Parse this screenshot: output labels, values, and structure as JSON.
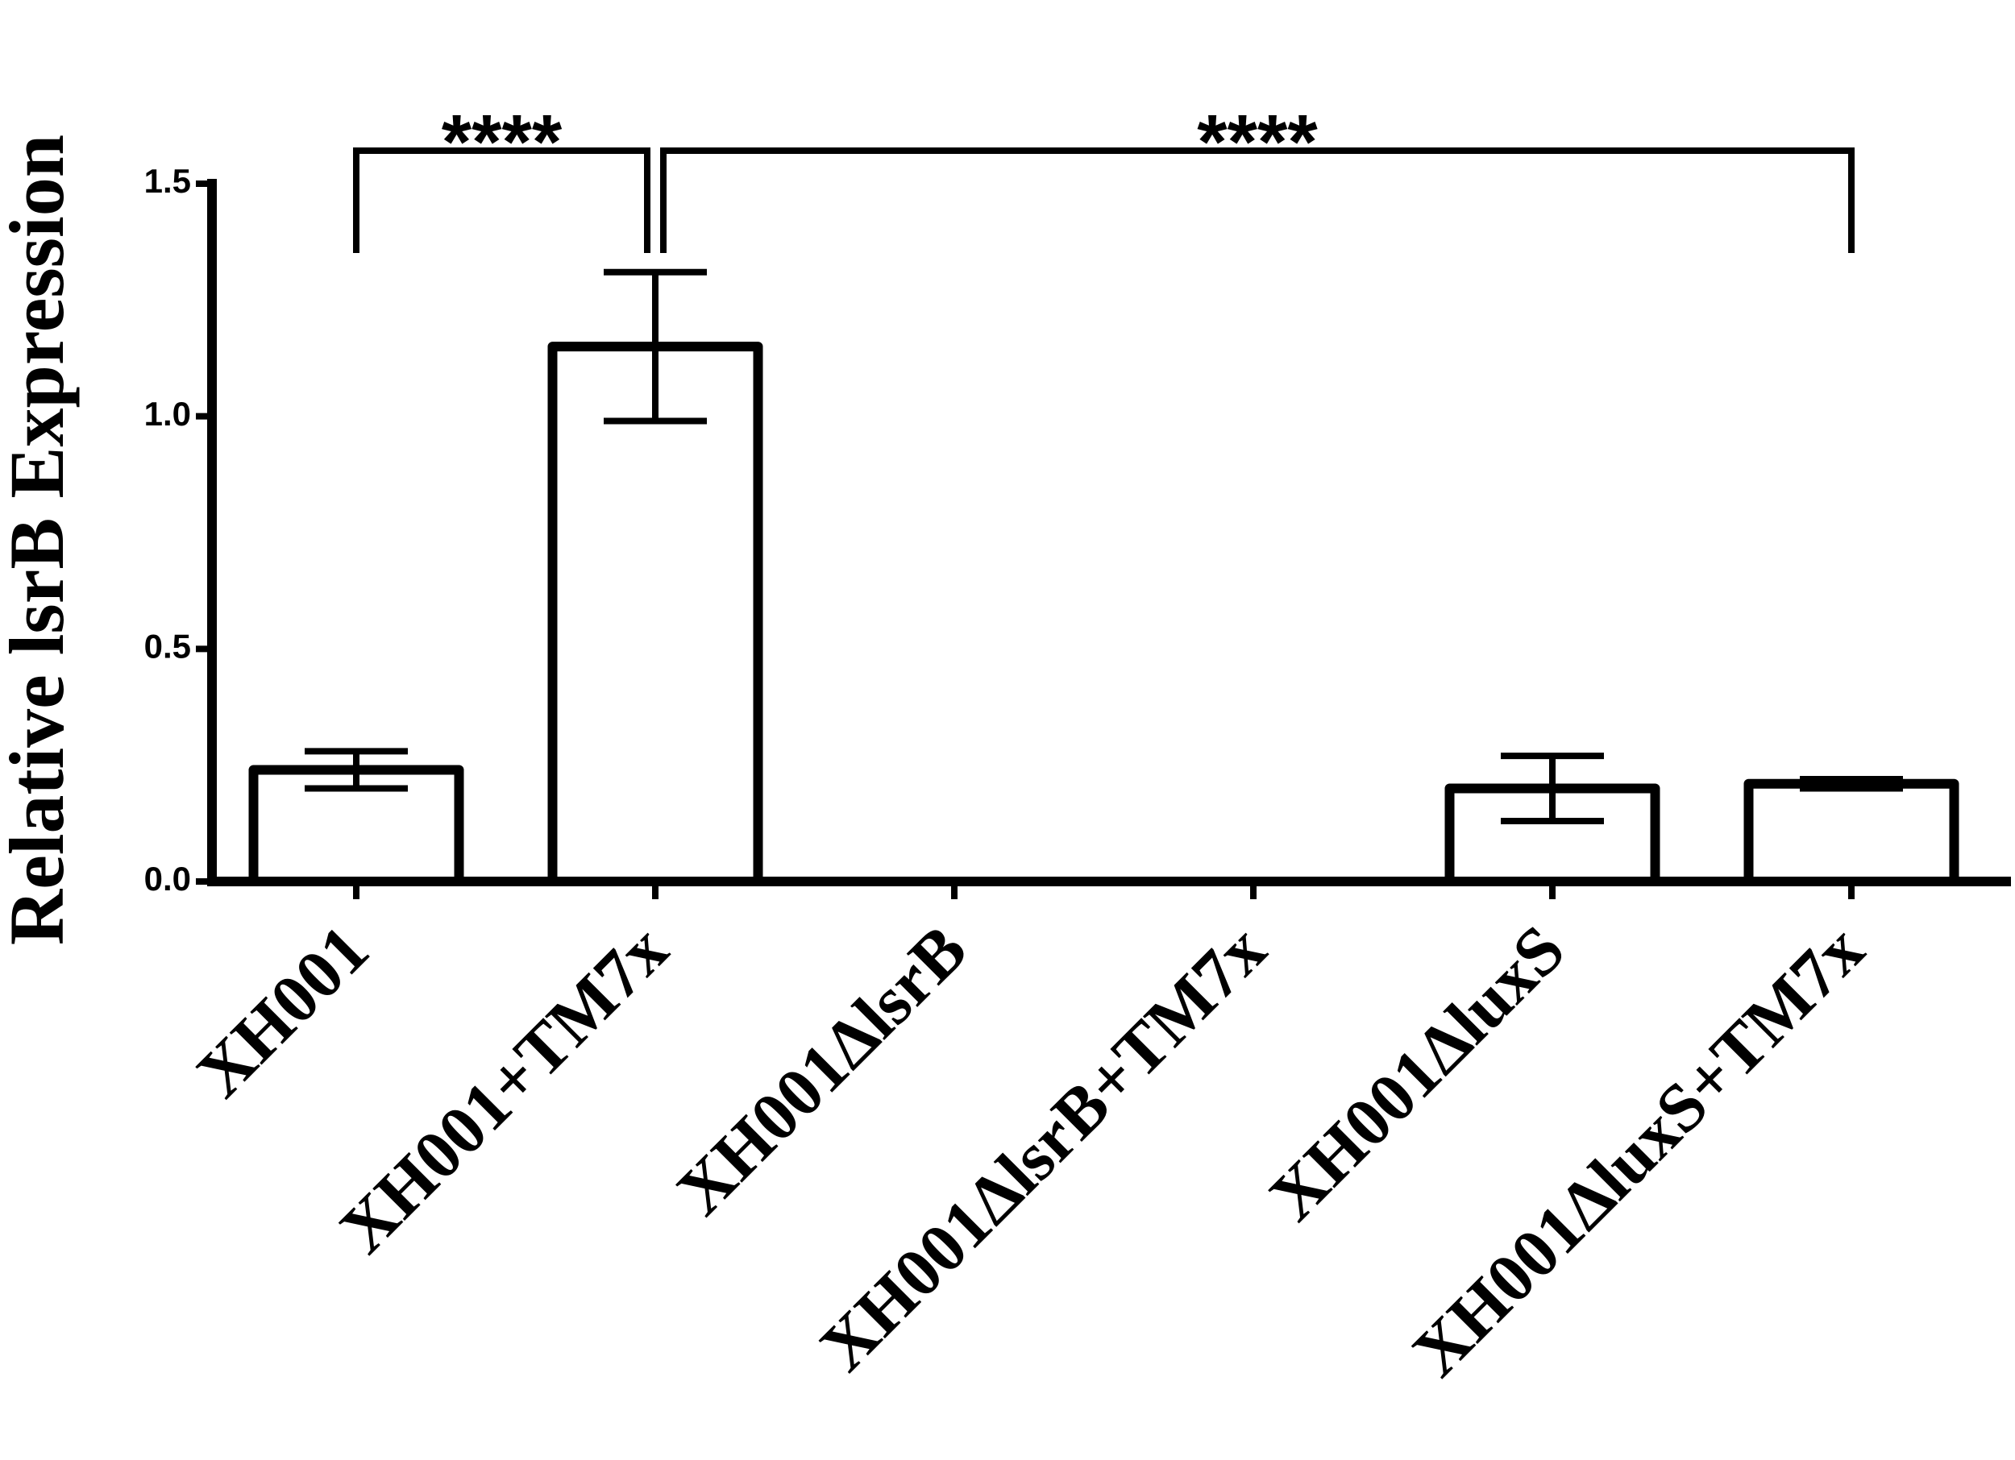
{
  "chart_data": {
    "type": "bar",
    "y_label": "Relative lsrB Expression",
    "categories": [
      "XH001",
      "XH001+TM7x",
      "XH001ΔlsrB",
      "XH001ΔlsrB+TM7x",
      "XH001ΔluxS",
      "XH001ΔluxS+TM7x"
    ],
    "values": [
      0.24,
      1.15,
      0,
      0,
      0.2,
      0.21
    ],
    "errors": [
      0.04,
      0.16,
      0,
      0,
      0.07,
      0.01
    ],
    "color": "#000000",
    "ylim": [
      0,
      1.5
    ],
    "yticks": [
      {
        "value": 0,
        "label": "0.0"
      },
      {
        "value": 0.5,
        "label": "0.5"
      },
      {
        "value": 1,
        "label": "1.0"
      },
      {
        "value": 1.5,
        "label": "1.5"
      }
    ],
    "comparisons": [
      {
        "text": "****",
        "from": 0,
        "to": 1
      },
      {
        "text": "****",
        "from": 1,
        "to": 5
      }
    ]
  }
}
